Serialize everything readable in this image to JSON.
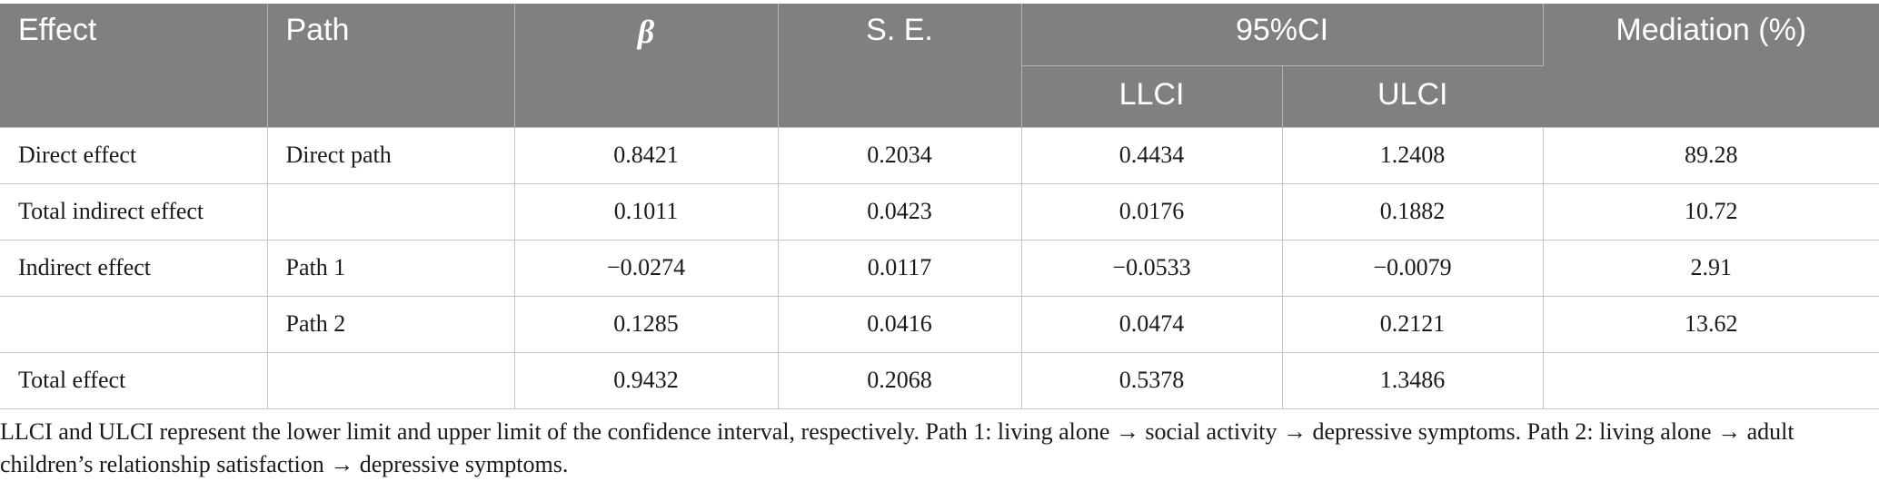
{
  "table": {
    "headers": {
      "effect": "Effect",
      "path": "Path",
      "beta": "β",
      "se": "S. E.",
      "ci": "95%CI",
      "llci": "LLCI",
      "ulci": "ULCI",
      "mediation": "Mediation (%)"
    },
    "rows": [
      {
        "effect": "Direct effect",
        "path": "Direct path",
        "beta": "0.8421",
        "se": "0.2034",
        "llci": "0.4434",
        "ulci": "1.2408",
        "mediation": "89.28"
      },
      {
        "effect": "Total indirect effect",
        "path": "",
        "beta": "0.1011",
        "se": "0.0423",
        "llci": "0.0176",
        "ulci": "0.1882",
        "mediation": "10.72"
      },
      {
        "effect": "Indirect effect",
        "path": "Path 1",
        "beta": "−0.0274",
        "se": "0.0117",
        "llci": "−0.0533",
        "ulci": "−0.0079",
        "mediation": "2.91"
      },
      {
        "effect": "",
        "path": "Path 2",
        "beta": "0.1285",
        "se": "0.0416",
        "llci": "0.0474",
        "ulci": "0.2121",
        "mediation": "13.62"
      },
      {
        "effect": "Total effect",
        "path": "",
        "beta": "0.9432",
        "se": "0.2068",
        "llci": "0.5378",
        "ulci": "1.3486",
        "mediation": ""
      }
    ]
  },
  "footnote": "LLCI and ULCI represent the lower limit and upper limit of the confidence interval, respectively. Path 1: living alone → social activity → depressive symptoms. Path 2: living alone → adult children’s relationship satisfaction → depressive symptoms.",
  "colors": {
    "header_bg": "#808080",
    "header_text": "#ffffff",
    "grid": "#c6c6c6"
  }
}
